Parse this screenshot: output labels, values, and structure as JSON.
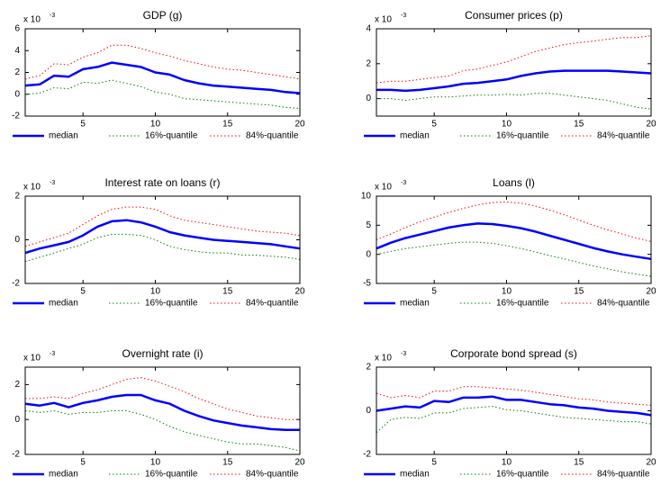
{
  "chart_data": [
    {
      "type": "line",
      "title": "GDP (g)",
      "multiplier": {
        "base": "x 10",
        "exponent": "-3"
      },
      "x": [
        1,
        2,
        3,
        4,
        5,
        6,
        7,
        8,
        9,
        10,
        11,
        12,
        13,
        14,
        15,
        16,
        17,
        18,
        19,
        20
      ],
      "xlim": [
        1,
        20
      ],
      "xticks": [
        5,
        10,
        15,
        20
      ],
      "ylim": [
        -2,
        6
      ],
      "yticks": [
        -2,
        0,
        2,
        4,
        6
      ],
      "legend": "below",
      "series": [
        {
          "name": "median",
          "color": "#0000ff",
          "style": "solid",
          "linewidth": 2.5,
          "values": [
            0.8,
            0.9,
            1.7,
            1.6,
            2.3,
            2.5,
            2.9,
            2.7,
            2.5,
            2.0,
            1.8,
            1.3,
            1.0,
            0.8,
            0.7,
            0.6,
            0.5,
            0.4,
            0.2,
            0.1
          ]
        },
        {
          "name": "16%-quantile",
          "color": "#008000",
          "style": "dotted",
          "linewidth": 1,
          "values": [
            0,
            0.1,
            0.6,
            0.5,
            1.1,
            1.0,
            1.3,
            1.0,
            0.7,
            0.2,
            0,
            -0.4,
            -0.5,
            -0.6,
            -0.7,
            -0.8,
            -0.9,
            -1.0,
            -1.2,
            -1.3
          ]
        },
        {
          "name": "84%-quantile",
          "color": "#ff0000",
          "style": "dotted",
          "linewidth": 1,
          "values": [
            1.4,
            1.7,
            2.8,
            2.7,
            3.4,
            3.8,
            4.5,
            4.5,
            4.2,
            3.8,
            3.5,
            3.1,
            2.8,
            2.5,
            2.3,
            2.2,
            2.0,
            1.8,
            1.6,
            1.4
          ]
        }
      ]
    },
    {
      "type": "line",
      "title": "Consumer prices (p)",
      "multiplier": {
        "base": "x 10",
        "exponent": "-3"
      },
      "x": [
        1,
        2,
        3,
        4,
        5,
        6,
        7,
        8,
        9,
        10,
        11,
        12,
        13,
        14,
        15,
        16,
        17,
        18,
        19,
        20
      ],
      "xlim": [
        1,
        20
      ],
      "xticks": [
        5,
        10,
        15,
        20
      ],
      "ylim": [
        -1,
        4
      ],
      "yticks": [
        0,
        2,
        4
      ],
      "legend": "below",
      "series": [
        {
          "name": "median",
          "color": "#0000ff",
          "style": "solid",
          "linewidth": 2.5,
          "values": [
            0.5,
            0.5,
            0.45,
            0.5,
            0.6,
            0.7,
            0.85,
            0.9,
            1.0,
            1.1,
            1.3,
            1.45,
            1.55,
            1.6,
            1.6,
            1.6,
            1.6,
            1.55,
            1.5,
            1.45
          ]
        },
        {
          "name": "16%-quantile",
          "color": "#008000",
          "style": "dotted",
          "linewidth": 1,
          "values": [
            0,
            0,
            -0.1,
            0,
            0.1,
            0.1,
            0.15,
            0.2,
            0.2,
            0.25,
            0.2,
            0.3,
            0.3,
            0.2,
            0.1,
            0,
            -0.1,
            -0.3,
            -0.5,
            -0.6
          ]
        },
        {
          "name": "84%-quantile",
          "color": "#ff0000",
          "style": "dotted",
          "linewidth": 1,
          "values": [
            0.9,
            1.0,
            1.0,
            1.1,
            1.2,
            1.3,
            1.6,
            1.7,
            1.9,
            2.1,
            2.4,
            2.7,
            2.9,
            3.1,
            3.2,
            3.3,
            3.4,
            3.5,
            3.5,
            3.6
          ]
        }
      ]
    },
    {
      "type": "line",
      "title": "Interest rate on loans (r)",
      "multiplier": {
        "base": "x 10",
        "exponent": "-3"
      },
      "x": [
        1,
        2,
        3,
        4,
        5,
        6,
        7,
        8,
        9,
        10,
        11,
        12,
        13,
        14,
        15,
        16,
        17,
        18,
        19,
        20
      ],
      "xlim": [
        1,
        20
      ],
      "xticks": [
        5,
        10,
        15,
        20
      ],
      "ylim": [
        -2,
        2
      ],
      "yticks": [
        -2,
        0,
        2
      ],
      "legend": "below",
      "series": [
        {
          "name": "median",
          "color": "#0000ff",
          "style": "solid",
          "linewidth": 2.5,
          "values": [
            -0.6,
            -0.4,
            -0.25,
            -0.1,
            0.2,
            0.6,
            0.85,
            0.9,
            0.8,
            0.6,
            0.35,
            0.2,
            0.1,
            0,
            -0.05,
            -0.1,
            -0.15,
            -0.2,
            -0.3,
            -0.4
          ]
        },
        {
          "name": "16%-quantile",
          "color": "#008000",
          "style": "dotted",
          "linewidth": 1,
          "values": [
            -1.0,
            -0.8,
            -0.6,
            -0.4,
            -0.2,
            0.1,
            0.25,
            0.25,
            0.2,
            0,
            -0.3,
            -0.45,
            -0.55,
            -0.6,
            -0.6,
            -0.7,
            -0.7,
            -0.75,
            -0.8,
            -0.9
          ]
        },
        {
          "name": "84%-quantile",
          "color": "#ff0000",
          "style": "dotted",
          "linewidth": 1,
          "values": [
            -0.3,
            -0.1,
            0.1,
            0.3,
            0.7,
            1.1,
            1.4,
            1.5,
            1.5,
            1.4,
            1.1,
            0.9,
            0.8,
            0.7,
            0.6,
            0.5,
            0.4,
            0.35,
            0.3,
            0.2
          ]
        }
      ]
    },
    {
      "type": "line",
      "title": "Loans (l)",
      "multiplier": {
        "base": "x 10",
        "exponent": "-3"
      },
      "x": [
        1,
        2,
        3,
        4,
        5,
        6,
        7,
        8,
        9,
        10,
        11,
        12,
        13,
        14,
        15,
        16,
        17,
        18,
        19,
        20
      ],
      "xlim": [
        1,
        20
      ],
      "xticks": [
        5,
        10,
        15,
        20
      ],
      "ylim": [
        -5,
        10
      ],
      "yticks": [
        -5,
        0,
        5,
        10
      ],
      "legend": "below",
      "series": [
        {
          "name": "median",
          "color": "#0000ff",
          "style": "solid",
          "linewidth": 2.5,
          "values": [
            1,
            2,
            2.8,
            3.4,
            4,
            4.6,
            5,
            5.3,
            5.2,
            4.9,
            4.5,
            3.9,
            3.2,
            2.5,
            1.8,
            1.1,
            0.5,
            0,
            -0.4,
            -0.8
          ]
        },
        {
          "name": "16%-quantile",
          "color": "#008000",
          "style": "dotted",
          "linewidth": 1,
          "values": [
            0,
            0.5,
            1,
            1.3,
            1.6,
            1.9,
            2.1,
            2.1,
            1.9,
            1.5,
            1,
            0.4,
            -0.2,
            -0.8,
            -1.4,
            -2,
            -2.5,
            -3,
            -3.4,
            -3.8
          ]
        },
        {
          "name": "84%-quantile",
          "color": "#ff0000",
          "style": "dotted",
          "linewidth": 1,
          "values": [
            2.5,
            3.5,
            4.6,
            5.6,
            6.4,
            7.2,
            7.9,
            8.5,
            8.9,
            9.0,
            8.8,
            8.3,
            7.6,
            6.8,
            5.9,
            5,
            4.2,
            3.5,
            2.8,
            2.2
          ]
        }
      ]
    },
    {
      "type": "line",
      "title": "Overnight rate (i)",
      "multiplier": {
        "base": "x 10",
        "exponent": "-3"
      },
      "x": [
        1,
        2,
        3,
        4,
        5,
        6,
        7,
        8,
        9,
        10,
        11,
        12,
        13,
        14,
        15,
        16,
        17,
        18,
        19,
        20
      ],
      "xlim": [
        1,
        20
      ],
      "xticks": [
        5,
        10,
        15,
        20
      ],
      "ylim": [
        -2,
        3
      ],
      "yticks": [
        -2,
        0,
        2
      ],
      "legend": "below",
      "series": [
        {
          "name": "median",
          "color": "#0000ff",
          "style": "solid",
          "linewidth": 2.5,
          "values": [
            0.9,
            0.8,
            0.95,
            0.7,
            0.95,
            1.1,
            1.3,
            1.4,
            1.4,
            1.1,
            0.9,
            0.5,
            0.2,
            -0.05,
            -0.2,
            -0.35,
            -0.45,
            -0.55,
            -0.6,
            -0.6
          ]
        },
        {
          "name": "16%-quantile",
          "color": "#008000",
          "style": "dotted",
          "linewidth": 1,
          "values": [
            0.5,
            0.4,
            0.5,
            0.3,
            0.4,
            0.4,
            0.5,
            0.5,
            0.3,
            0,
            -0.4,
            -0.7,
            -0.9,
            -1.1,
            -1.3,
            -1.4,
            -1.4,
            -1.5,
            -1.6,
            -1.8
          ]
        },
        {
          "name": "84%-quantile",
          "color": "#ff0000",
          "style": "dotted",
          "linewidth": 1,
          "values": [
            1.2,
            1.2,
            1.3,
            1.2,
            1.5,
            1.7,
            2.0,
            2.3,
            2.4,
            2.2,
            1.9,
            1.6,
            1.2,
            0.9,
            0.6,
            0.4,
            0.2,
            0.1,
            0,
            0
          ]
        }
      ]
    },
    {
      "type": "line",
      "title": "Corporate bond spread (s)",
      "multiplier": {
        "base": "x 10",
        "exponent": "-3"
      },
      "x": [
        1,
        2,
        3,
        4,
        5,
        6,
        7,
        8,
        9,
        10,
        11,
        12,
        13,
        14,
        15,
        16,
        17,
        18,
        19,
        20
      ],
      "xlim": [
        1,
        20
      ],
      "xticks": [
        5,
        10,
        15,
        20
      ],
      "ylim": [
        -2,
        2
      ],
      "yticks": [
        -2,
        0,
        2
      ],
      "legend": "below",
      "series": [
        {
          "name": "median",
          "color": "#0000ff",
          "style": "solid",
          "linewidth": 2.5,
          "values": [
            0,
            0.1,
            0.2,
            0.15,
            0.45,
            0.4,
            0.6,
            0.6,
            0.65,
            0.5,
            0.5,
            0.4,
            0.3,
            0.25,
            0.15,
            0.1,
            0,
            -0.05,
            -0.1,
            -0.2
          ]
        },
        {
          "name": "16%-quantile",
          "color": "#008000",
          "style": "dotted",
          "linewidth": 1,
          "values": [
            -1.0,
            -0.4,
            -0.3,
            -0.35,
            -0.1,
            -0.1,
            0.1,
            0.15,
            0.2,
            0.05,
            0,
            -0.1,
            -0.2,
            -0.3,
            -0.35,
            -0.4,
            -0.45,
            -0.5,
            -0.5,
            -0.6
          ]
        },
        {
          "name": "84%-quantile",
          "color": "#ff0000",
          "style": "dotted",
          "linewidth": 1,
          "values": [
            0.8,
            0.6,
            0.7,
            0.6,
            0.9,
            0.9,
            1.1,
            1.1,
            1.05,
            1.0,
            0.95,
            0.85,
            0.75,
            0.65,
            0.55,
            0.5,
            0.4,
            0.35,
            0.3,
            0.25
          ]
        }
      ]
    }
  ]
}
